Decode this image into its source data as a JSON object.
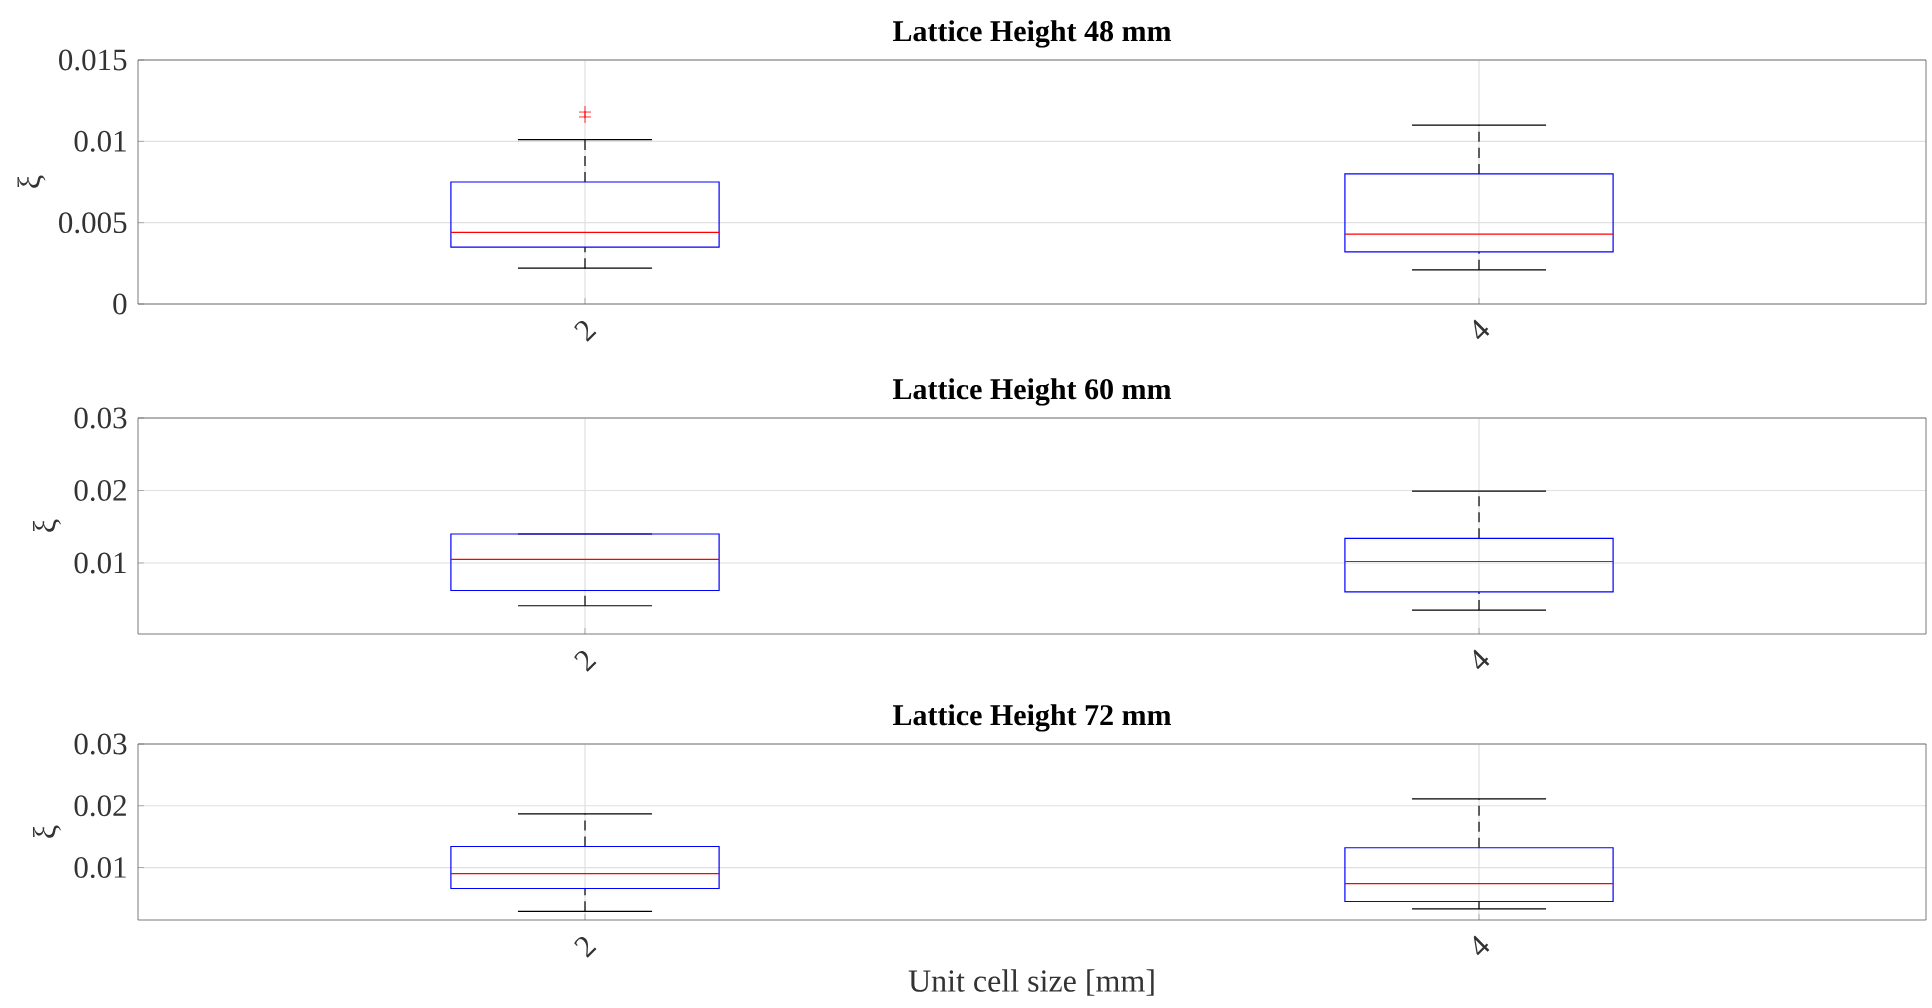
{
  "chart_data": [
    {
      "type": "box",
      "title": "Lattice Height 48 mm",
      "ylabel": "ξ",
      "categories": [
        "2",
        "4"
      ],
      "color": "#0000ff",
      "marker": "cross",
      "grid": true,
      "ylim": [
        0,
        0.015
      ],
      "yticks": [
        0,
        0.005,
        0.01,
        0.015
      ],
      "boxes": [
        {
          "low": 0.0022,
          "q1": 0.0035,
          "median": 0.0044,
          "q3": 0.0075,
          "high": 0.0101,
          "outliers": [
            0.0115,
            0.0118
          ]
        },
        {
          "low": 0.0021,
          "q1": 0.0032,
          "median": 0.0043,
          "q3": 0.008,
          "high": 0.011
        }
      ]
    },
    {
      "type": "box",
      "title": "Lattice Height 60 mm",
      "ylabel": "ξ",
      "categories": [
        "2",
        "4"
      ],
      "color": "#0000ff",
      "grid": true,
      "ylim": [
        0.0002,
        0.03
      ],
      "yticks": [
        0.01,
        0.02,
        0.03
      ],
      "boxes": [
        {
          "low": 0.0041,
          "q1": 0.0062,
          "median": 0.0105,
          "q3": 0.014,
          "high": 0.014
        },
        {
          "low": 0.0035,
          "q1": 0.006,
          "median": 0.0102,
          "q3": 0.0134,
          "high": 0.0199
        }
      ]
    },
    {
      "type": "box",
      "title": "Lattice Height 72 mm",
      "ylabel": "ξ",
      "xlabel": "Unit cell size [mm]",
      "categories": [
        "2",
        "4"
      ],
      "color": "#0000ff",
      "grid": true,
      "ylim": [
        0.0015,
        0.03
      ],
      "yticks": [
        0.01,
        0.02,
        0.03
      ],
      "boxes": [
        {
          "low": 0.0029,
          "q1": 0.0066,
          "median": 0.009,
          "q3": 0.0134,
          "high": 0.0187
        },
        {
          "low": 0.0033,
          "q1": 0.0045,
          "median": 0.0074,
          "q3": 0.0132,
          "high": 0.0211
        }
      ]
    }
  ]
}
